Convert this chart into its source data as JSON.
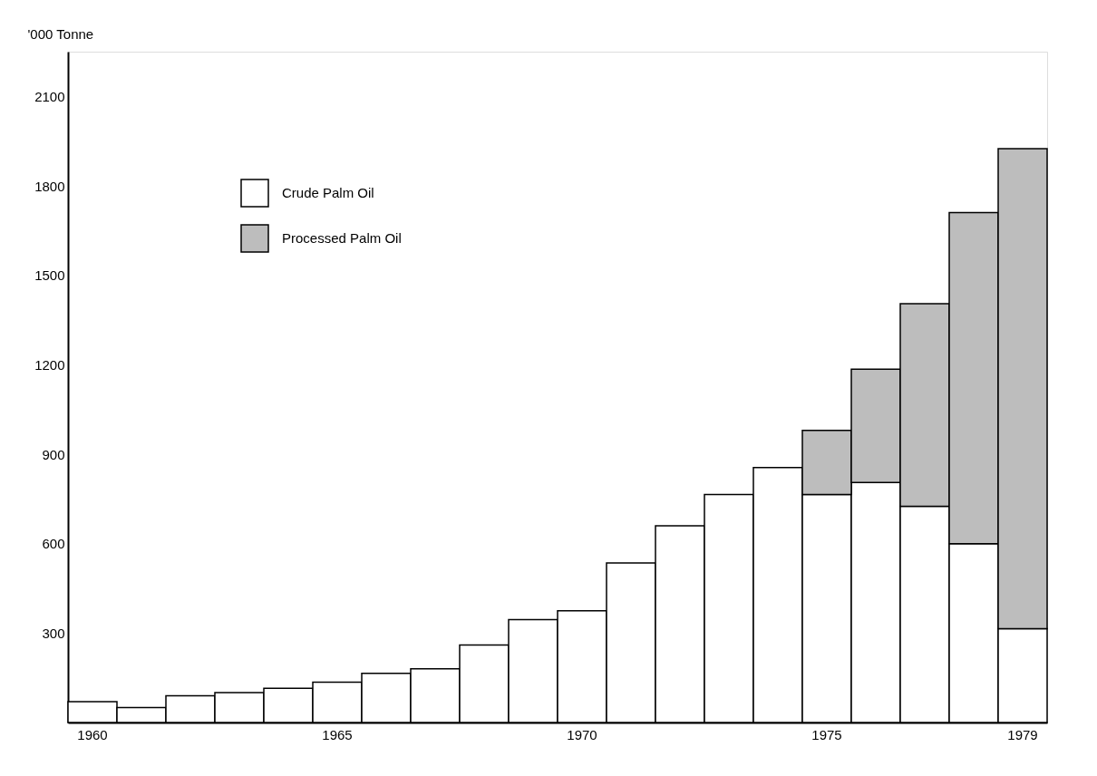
{
  "chart_data": {
    "type": "bar",
    "stacked": true,
    "categories": [
      "1960",
      null,
      null,
      null,
      null,
      "1965",
      null,
      null,
      null,
      null,
      "1970",
      null,
      null,
      null,
      null,
      "1975",
      null,
      null,
      null,
      "1979"
    ],
    "ylabel": "'000 Tonne",
    "ylim": [
      0,
      2250
    ],
    "yticks": [
      300,
      600,
      900,
      1200,
      1500,
      1800,
      2100
    ],
    "series": [
      {
        "name": "Crude Palm Oil",
        "color": "#ffffff",
        "values": [
          70,
          50,
          90,
          100,
          115,
          135,
          165,
          180,
          260,
          345,
          375,
          535,
          660,
          765,
          855,
          765,
          805,
          725,
          600,
          315
        ]
      },
      {
        "name": "Processed Palm Oil",
        "color": "#bdbdbd",
        "values": [
          null,
          null,
          null,
          null,
          null,
          null,
          null,
          null,
          null,
          null,
          null,
          null,
          null,
          null,
          null,
          215,
          380,
          680,
          1110,
          1610
        ]
      }
    ],
    "legend": "top left",
    "grid": false
  }
}
